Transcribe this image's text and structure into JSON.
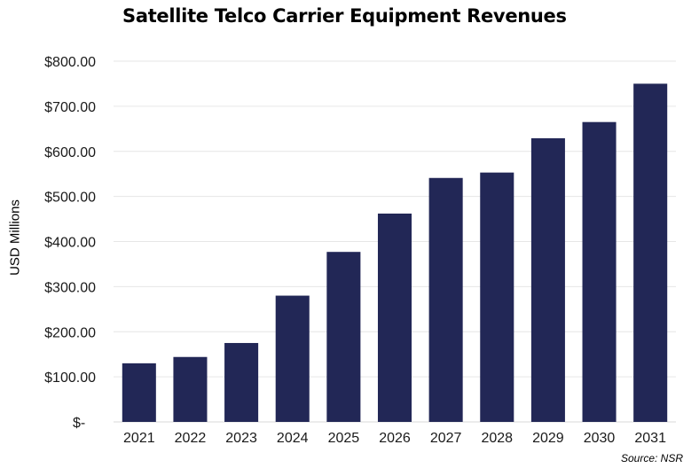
{
  "chart_data": {
    "type": "bar",
    "title": "Satellite Telco Carrier Equipment Revenues",
    "xlabel": "",
    "ylabel": "USD Millions",
    "categories": [
      "2021",
      "2022",
      "2023",
      "2024",
      "2025",
      "2026",
      "2027",
      "2028",
      "2029",
      "2030",
      "2031"
    ],
    "values": [
      130,
      144,
      175,
      280,
      377,
      462,
      541,
      553,
      629,
      665,
      750
    ],
    "ylim": [
      0,
      800
    ],
    "yticks": [
      0,
      100,
      200,
      300,
      400,
      500,
      600,
      700,
      800
    ],
    "ytick_labels": [
      "$-",
      "$100.00",
      "$200.00",
      "$300.00",
      "$400.00",
      "$500.00",
      "$600.00",
      "$700.00",
      "$800.00"
    ],
    "bar_color": "#222756",
    "grid": true,
    "legend": "none",
    "source": "Source: NSR"
  }
}
